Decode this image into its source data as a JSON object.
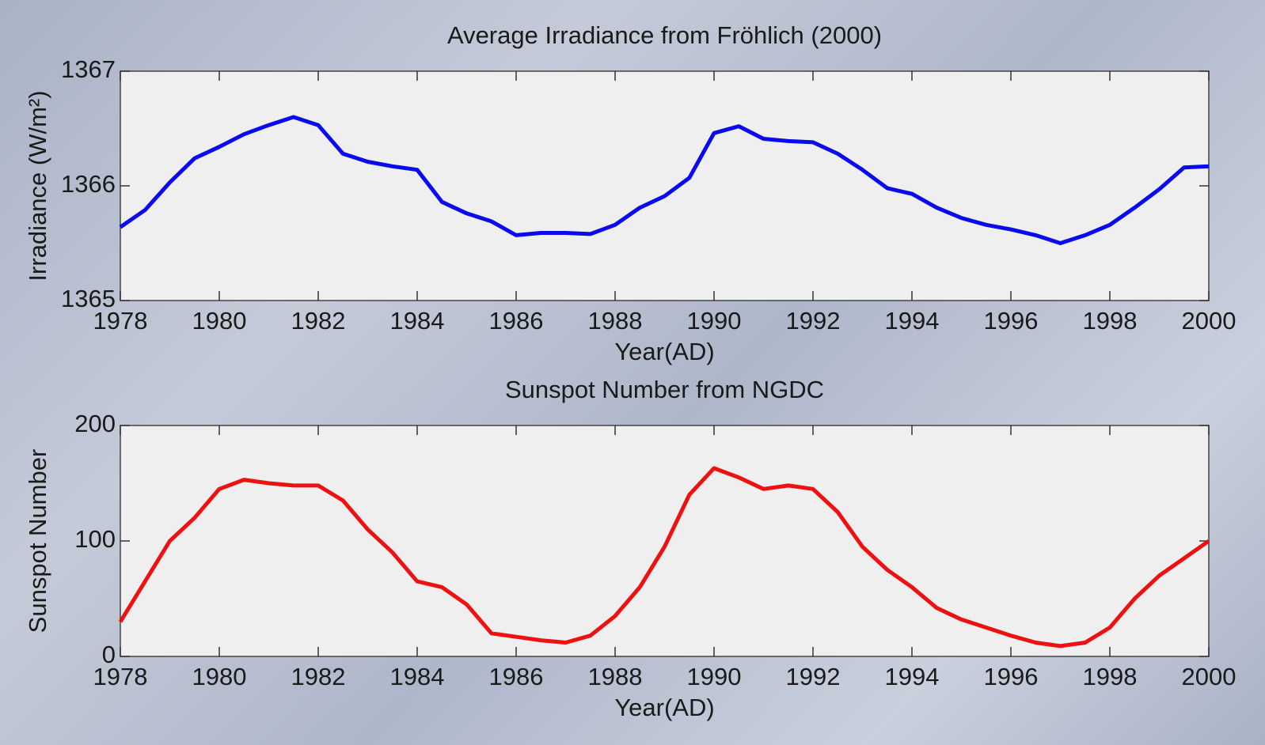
{
  "chart_data": [
    {
      "type": "line",
      "title": "Average Irradiance from Fröhlich (2000)",
      "xlabel": "Year(AD)",
      "ylabel": "Irradiance (W/m²)",
      "x": [
        1978,
        1978.5,
        1979,
        1979.5,
        1980,
        1980.5,
        1981,
        1981.5,
        1982,
        1982.5,
        1983,
        1983.5,
        1984,
        1984.5,
        1985,
        1985.5,
        1986,
        1986.5,
        1987,
        1987.5,
        1988,
        1988.5,
        1989,
        1989.5,
        1990,
        1990.5,
        1991,
        1991.5,
        1992,
        1992.5,
        1993,
        1993.5,
        1994,
        1994.5,
        1995,
        1995.5,
        1996,
        1996.5,
        1997,
        1997.5,
        1998,
        1998.5,
        1999,
        1999.5,
        2000
      ],
      "values": [
        1365.64,
        1365.79,
        1366.03,
        1366.24,
        1366.34,
        1366.45,
        1366.53,
        1366.6,
        1366.53,
        1366.28,
        1366.21,
        1366.17,
        1366.14,
        1365.86,
        1365.76,
        1365.69,
        1365.57,
        1365.59,
        1365.59,
        1365.58,
        1365.66,
        1365.81,
        1365.91,
        1366.07,
        1366.46,
        1366.52,
        1366.41,
        1366.39,
        1366.38,
        1366.28,
        1366.14,
        1365.98,
        1365.93,
        1365.81,
        1365.72,
        1365.66,
        1365.62,
        1365.57,
        1365.5,
        1365.57,
        1365.66,
        1365.81,
        1365.97,
        1366.16,
        1366.17
      ],
      "color": "#0a0aee",
      "xlim": [
        1978,
        2000
      ],
      "ylim": [
        1365,
        1367
      ],
      "xticks": [
        1978,
        1980,
        1982,
        1984,
        1986,
        1988,
        1990,
        1992,
        1994,
        1996,
        1998,
        2000
      ],
      "yticks": [
        1365,
        1366,
        1367
      ]
    },
    {
      "type": "line",
      "title": "Sunspot Number from NGDC",
      "xlabel": "Year(AD)",
      "ylabel": "Sunspot Number",
      "x": [
        1978,
        1978.5,
        1979,
        1979.5,
        1980,
        1980.5,
        1981,
        1981.5,
        1982,
        1982.5,
        1983,
        1983.5,
        1984,
        1984.5,
        1985,
        1985.5,
        1986,
        1986.5,
        1987,
        1987.5,
        1988,
        1988.5,
        1989,
        1989.5,
        1990,
        1990.5,
        1991,
        1991.5,
        1992,
        1992.5,
        1993,
        1993.5,
        1994,
        1994.5,
        1995,
        1995.5,
        1996,
        1996.5,
        1997,
        1997.5,
        1998,
        1998.5,
        1999,
        1999.5,
        2000
      ],
      "values": [
        30,
        65,
        100,
        120,
        145,
        153,
        150,
        148,
        148,
        135,
        110,
        90,
        65,
        60,
        45,
        20,
        17,
        14,
        12,
        18,
        35,
        60,
        95,
        140,
        163,
        155,
        145,
        148,
        145,
        125,
        95,
        75,
        60,
        42,
        32,
        25,
        18,
        12,
        9,
        12,
        25,
        50,
        70,
        85,
        100
      ],
      "color": "#ee1111",
      "xlim": [
        1978,
        2000
      ],
      "ylim": [
        0,
        200
      ],
      "xticks": [
        1978,
        1980,
        1982,
        1984,
        1986,
        1988,
        1990,
        1992,
        1994,
        1996,
        1998,
        2000
      ],
      "yticks": [
        0,
        100,
        200
      ]
    }
  ]
}
